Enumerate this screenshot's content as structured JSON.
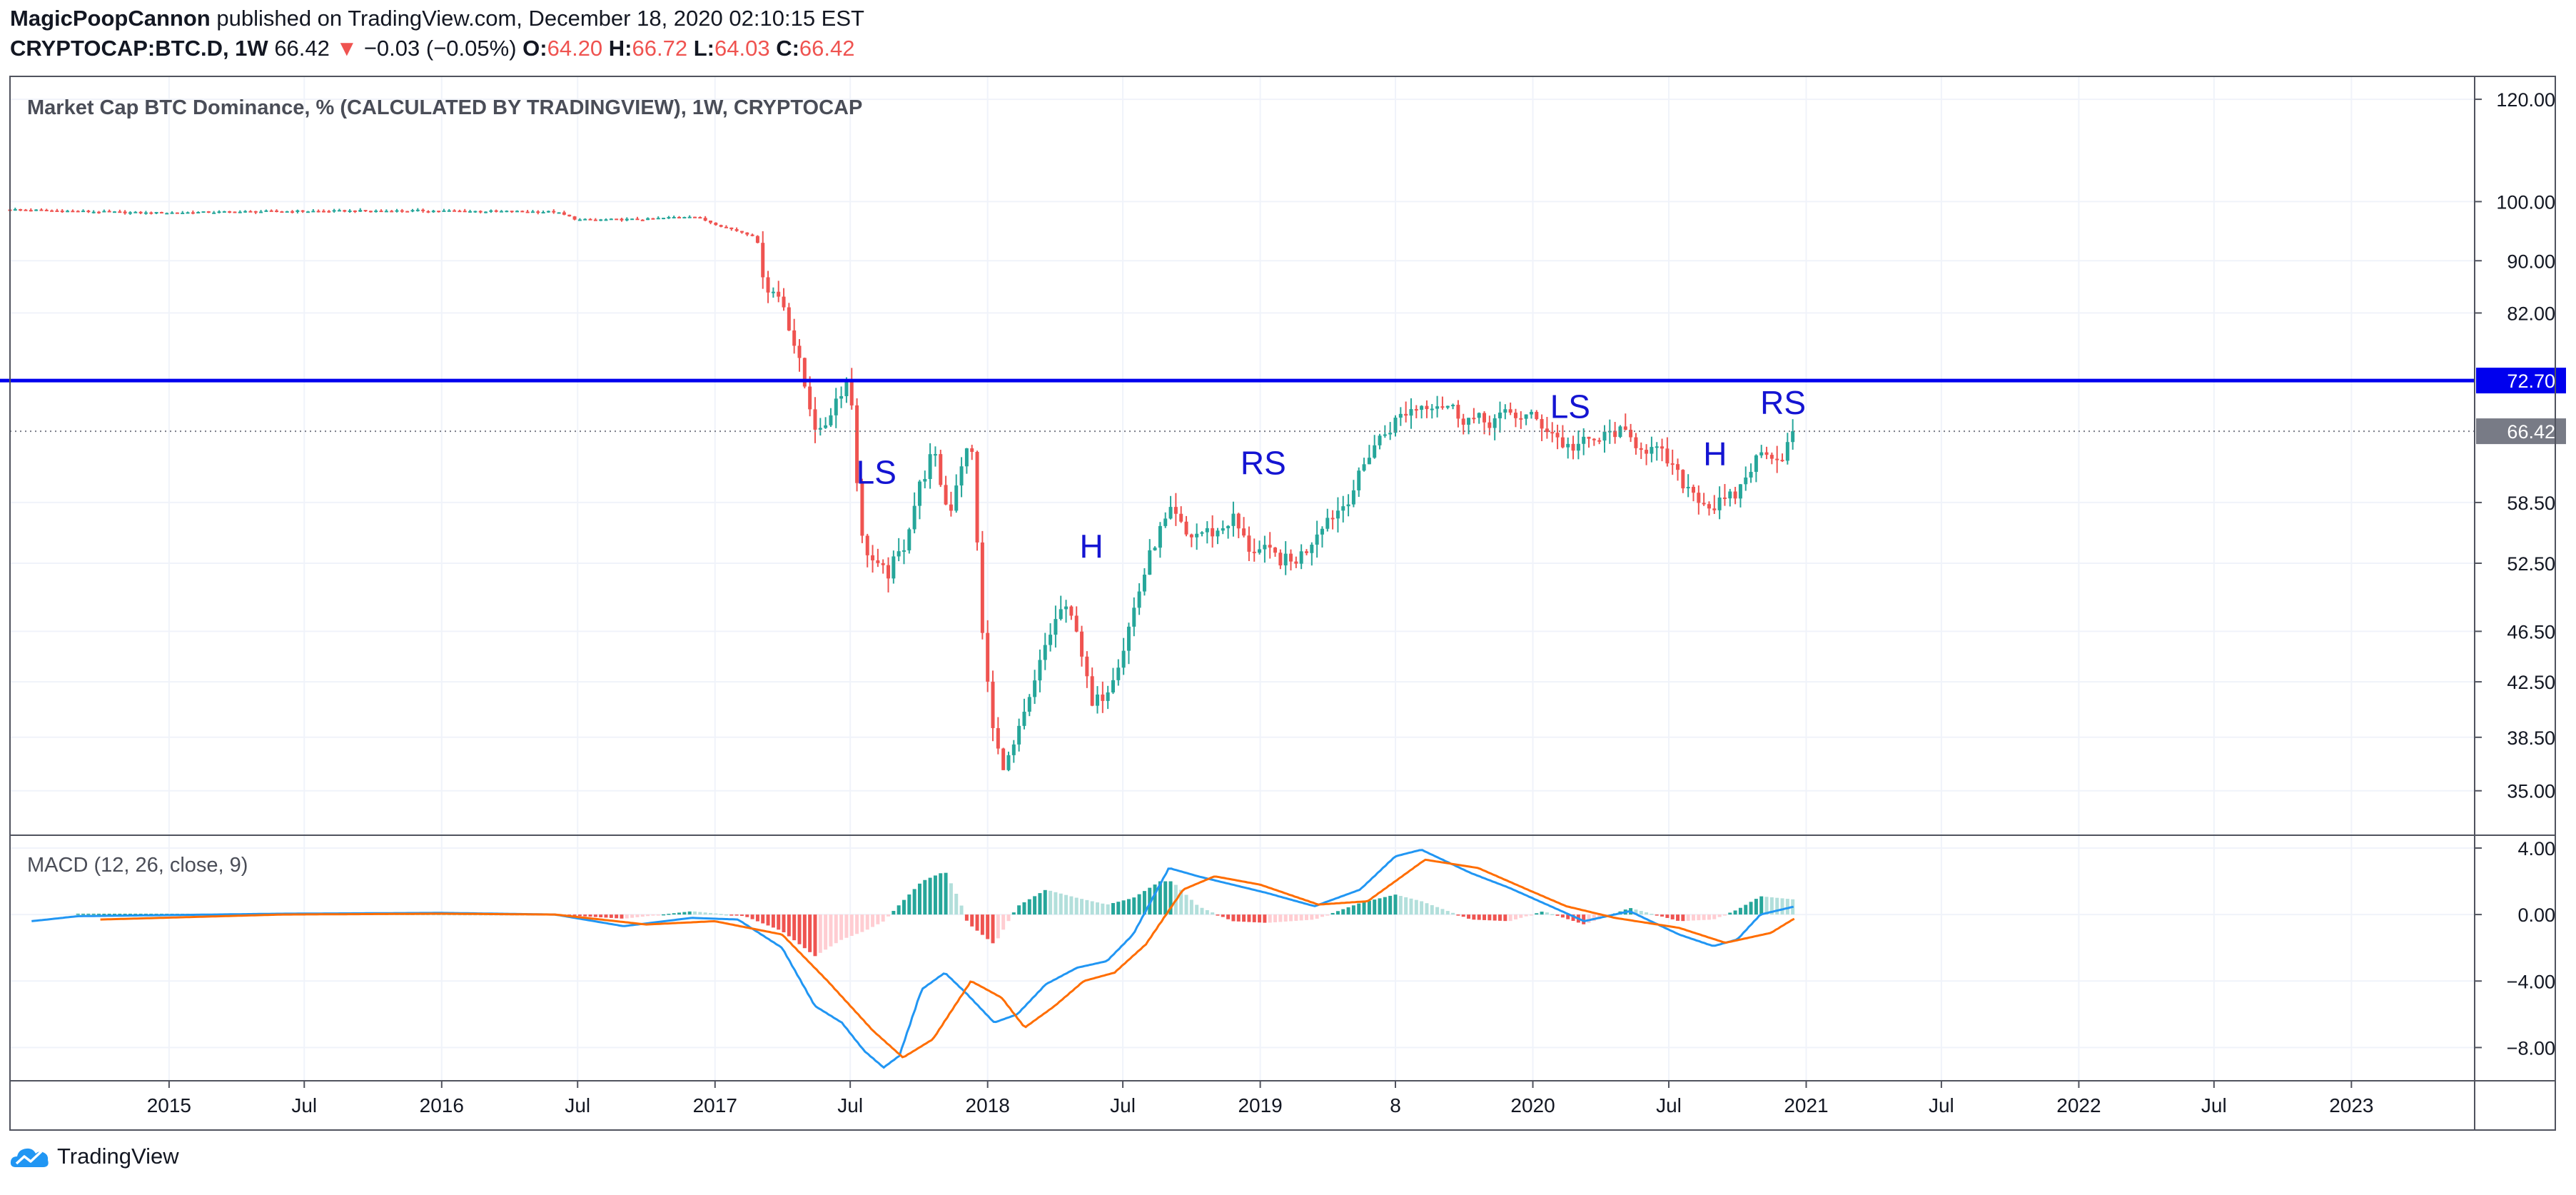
{
  "header": {
    "author": "MagicPoopCannon",
    "published": "published on TradingView.com, December 18, 2020 02:10:15 EST",
    "symbol": "CRYPTOCAP:BTC.D, 1W",
    "last": "66.42",
    "arrow": "▼",
    "change": "−0.03 (−0.05%)",
    "o_label": "O:",
    "o_value": "64.20",
    "h_label": "H:",
    "h_value": "66.72",
    "l_label": "L:",
    "l_value": "64.03",
    "c_label": "C:",
    "c_value": "66.42"
  },
  "branding": {
    "name": "TradingView",
    "icon": "tradingview-cloud-icon"
  },
  "colors": {
    "up": "#26a69a",
    "down": "#ef5350",
    "hist_up_strong": "#26a69a",
    "hist_up_weak": "#b2dfdb",
    "hist_down_strong": "#ef5350",
    "hist_down_weak": "#ffcdd2",
    "macd_line": "#2196f3",
    "signal_line": "#ff6d00",
    "resistance": "#0000ee",
    "annotation": "#1414d2",
    "last_badge": "#787b86"
  },
  "chart_data": [
    {
      "type": "candlestick",
      "title": "Market Cap BTC Dominance, % (CALCULATED BY TRADINGVIEW), 1W, CRYPTOCAP",
      "y_scale": "log",
      "ylim": [
        32.5,
        125
      ],
      "xlim": [
        "2014-06-02",
        "2023-06-15"
      ],
      "y_ticks": [
        "120.00",
        "100.00",
        "90.00",
        "82.00",
        "58.50",
        "52.50",
        "46.50",
        "42.50",
        "38.50",
        "35.00"
      ],
      "x_ticks": [
        {
          "date": "2015-01-01",
          "label": "2015"
        },
        {
          "date": "2015-07-01",
          "label": "Jul"
        },
        {
          "date": "2016-01-01",
          "label": "2016"
        },
        {
          "date": "2016-07-01",
          "label": "Jul"
        },
        {
          "date": "2017-01-01",
          "label": "2017"
        },
        {
          "date": "2017-07-01",
          "label": "Jul"
        },
        {
          "date": "2018-01-01",
          "label": "2018"
        },
        {
          "date": "2018-07-01",
          "label": "Jul"
        },
        {
          "date": "2019-01-01",
          "label": "2019"
        },
        {
          "date": "2019-07-01",
          "label": "8"
        },
        {
          "date": "2020-01-01",
          "label": "2020"
        },
        {
          "date": "2020-07-01",
          "label": "Jul"
        },
        {
          "date": "2021-01-01",
          "label": "2021"
        },
        {
          "date": "2021-07-01",
          "label": "Jul"
        },
        {
          "date": "2022-01-01",
          "label": "2022"
        },
        {
          "date": "2022-07-01",
          "label": "Jul"
        },
        {
          "date": "2023-01-01",
          "label": "2023"
        }
      ],
      "horizontal_line": {
        "value": 72.7,
        "label": "72.70"
      },
      "last_price": {
        "value": 66.42,
        "label": "66.42"
      },
      "annotations": [
        {
          "text": "LS",
          "date": "2017-08-05",
          "value": 60.5
        },
        {
          "text": "H",
          "date": "2018-05-20",
          "value": 53.0
        },
        {
          "text": "RS",
          "date": "2019-01-05",
          "value": 61.5
        },
        {
          "text": "LS",
          "date": "2020-02-20",
          "value": 68.0
        },
        {
          "text": "H",
          "date": "2020-09-01",
          "value": 62.5
        },
        {
          "text": "RS",
          "date": "2020-12-01",
          "value": 68.5
        }
      ],
      "close_path": [
        [
          "2014-06-02",
          98.6
        ],
        [
          "2014-12-01",
          98.0
        ],
        [
          "2015-06-01",
          98.3
        ],
        [
          "2015-12-01",
          98.4
        ],
        [
          "2016-06-01",
          98.2
        ],
        [
          "2016-07-01",
          96.8
        ],
        [
          "2016-10-01",
          96.9
        ],
        [
          "2016-12-01",
          97.5
        ],
        [
          "2017-01-15",
          95.5
        ],
        [
          "2017-02-25",
          94.0
        ],
        [
          "2017-03-10",
          86.0
        ],
        [
          "2017-04-01",
          84.0
        ],
        [
          "2017-05-01",
          72.0
        ],
        [
          "2017-05-20",
          65.5
        ],
        [
          "2017-06-10",
          70.0
        ],
        [
          "2017-06-30",
          73.5
        ],
        [
          "2017-07-15",
          55.0
        ],
        [
          "2017-08-05",
          52.0
        ],
        [
          "2017-08-20",
          51.5
        ],
        [
          "2017-09-10",
          54.0
        ],
        [
          "2017-10-01",
          60.0
        ],
        [
          "2017-10-20",
          64.0
        ],
        [
          "2017-11-10",
          57.0
        ],
        [
          "2017-11-25",
          62.5
        ],
        [
          "2017-12-10",
          65.0
        ],
        [
          "2017-12-25",
          46.0
        ],
        [
          "2018-01-10",
          38.0
        ],
        [
          "2018-01-25",
          36.5
        ],
        [
          "2018-02-10",
          38.5
        ],
        [
          "2018-03-01",
          41.5
        ],
        [
          "2018-03-20",
          45.5
        ],
        [
          "2018-04-10",
          48.5
        ],
        [
          "2018-04-30",
          47.0
        ],
        [
          "2018-05-20",
          40.5
        ],
        [
          "2018-06-10",
          42.0
        ],
        [
          "2018-07-01",
          45.0
        ],
        [
          "2018-07-25",
          50.5
        ],
        [
          "2018-08-15",
          55.0
        ],
        [
          "2018-09-05",
          57.5
        ],
        [
          "2018-09-25",
          55.0
        ],
        [
          "2018-10-15",
          55.5
        ],
        [
          "2018-11-05",
          55.5
        ],
        [
          "2018-11-25",
          57.0
        ],
        [
          "2018-12-15",
          54.0
        ],
        [
          "2019-01-10",
          53.5
        ],
        [
          "2019-02-10",
          52.5
        ],
        [
          "2019-03-01",
          53.5
        ],
        [
          "2019-03-25",
          56.5
        ],
        [
          "2019-04-20",
          58.0
        ],
        [
          "2019-05-10",
          60.5
        ],
        [
          "2019-05-30",
          64.5
        ],
        [
          "2019-06-20",
          66.5
        ],
        [
          "2019-07-10",
          68.5
        ],
        [
          "2019-08-01",
          69.5
        ],
        [
          "2019-08-20",
          70.0
        ],
        [
          "2019-09-10",
          69.5
        ],
        [
          "2019-10-01",
          68.0
        ],
        [
          "2019-11-01",
          67.5
        ],
        [
          "2019-12-01",
          68.5
        ],
        [
          "2020-01-01",
          68.0
        ],
        [
          "2020-01-25",
          66.5
        ],
        [
          "2020-02-15",
          64.5
        ],
        [
          "2020-03-10",
          65.0
        ],
        [
          "2020-04-01",
          65.5
        ],
        [
          "2020-04-20",
          66.5
        ],
        [
          "2020-05-10",
          65.5
        ],
        [
          "2020-06-01",
          64.5
        ],
        [
          "2020-06-25",
          63.5
        ],
        [
          "2020-07-15",
          61.0
        ],
        [
          "2020-08-05",
          59.5
        ],
        [
          "2020-08-25",
          58.0
        ],
        [
          "2020-09-15",
          58.5
        ],
        [
          "2020-10-01",
          59.5
        ],
        [
          "2020-10-20",
          62.5
        ],
        [
          "2020-11-10",
          64.5
        ],
        [
          "2020-11-25",
          63.0
        ],
        [
          "2020-12-18",
          66.42
        ]
      ]
    },
    {
      "type": "line",
      "title": "MACD (12, 26, close, 9)",
      "ylim": [
        -10.0,
        4.6
      ],
      "y_ticks": [
        "4.00",
        "0.00",
        "−4.00",
        "−8.00"
      ],
      "series": [
        {
          "name": "MACD",
          "points": [
            [
              "2014-07-01",
              -0.4
            ],
            [
              "2014-09-01",
              -0.1
            ],
            [
              "2015-06-01",
              0.05
            ],
            [
              "2016-01-01",
              0.1
            ],
            [
              "2016-06-01",
              0.0
            ],
            [
              "2016-09-01",
              -0.7
            ],
            [
              "2016-12-01",
              -0.2
            ],
            [
              "2017-02-01",
              -0.3
            ],
            [
              "2017-04-01",
              -2.0
            ],
            [
              "2017-05-15",
              -5.5
            ],
            [
              "2017-06-20",
              -6.5
            ],
            [
              "2017-07-20",
              -8.2
            ],
            [
              "2017-08-15",
              -9.2
            ],
            [
              "2017-09-05",
              -8.5
            ],
            [
              "2017-10-05",
              -4.5
            ],
            [
              "2017-11-05",
              -3.5
            ],
            [
              "2017-12-05",
              -4.8
            ],
            [
              "2018-01-10",
              -6.5
            ],
            [
              "2018-02-10",
              -6.0
            ],
            [
              "2018-03-20",
              -4.2
            ],
            [
              "2018-05-01",
              -3.2
            ],
            [
              "2018-06-10",
              -2.8
            ],
            [
              "2018-07-15",
              -1.2
            ],
            [
              "2018-09-01",
              2.8
            ],
            [
              "2018-10-10",
              2.3
            ],
            [
              "2018-11-25",
              1.8
            ],
            [
              "2019-01-10",
              1.3
            ],
            [
              "2019-03-15",
              0.5
            ],
            [
              "2019-05-15",
              1.5
            ],
            [
              "2019-07-01",
              3.5
            ],
            [
              "2019-08-05",
              3.9
            ],
            [
              "2019-10-10",
              2.5
            ],
            [
              "2019-12-01",
              1.6
            ],
            [
              "2020-01-15",
              0.7
            ],
            [
              "2020-03-10",
              -0.4
            ],
            [
              "2020-05-10",
              0.2
            ],
            [
              "2020-07-15",
              -1.2
            ],
            [
              "2020-08-30",
              -1.9
            ],
            [
              "2020-10-01",
              -1.5
            ],
            [
              "2020-11-01",
              0.0
            ],
            [
              "2020-12-18",
              0.5
            ]
          ]
        },
        {
          "name": "Signal",
          "points": [
            [
              "2014-10-01",
              -0.3
            ],
            [
              "2015-06-01",
              0.0
            ],
            [
              "2016-01-01",
              0.05
            ],
            [
              "2016-06-01",
              0.0
            ],
            [
              "2016-10-01",
              -0.6
            ],
            [
              "2017-01-01",
              -0.4
            ],
            [
              "2017-04-01",
              -1.2
            ],
            [
              "2017-06-01",
              -4.0
            ],
            [
              "2017-08-01",
              -7.0
            ],
            [
              "2017-09-10",
              -8.6
            ],
            [
              "2017-10-20",
              -7.5
            ],
            [
              "2017-12-10",
              -4.0
            ],
            [
              "2018-01-20",
              -5.0
            ],
            [
              "2018-02-20",
              -6.8
            ],
            [
              "2018-04-01",
              -5.5
            ],
            [
              "2018-05-10",
              -4.0
            ],
            [
              "2018-06-20",
              -3.5
            ],
            [
              "2018-08-01",
              -1.8
            ],
            [
              "2018-09-20",
              1.5
            ],
            [
              "2018-11-01",
              2.3
            ],
            [
              "2019-01-01",
              1.8
            ],
            [
              "2019-03-20",
              0.6
            ],
            [
              "2019-05-25",
              0.8
            ],
            [
              "2019-08-10",
              3.3
            ],
            [
              "2019-10-20",
              2.8
            ],
            [
              "2019-12-20",
              1.6
            ],
            [
              "2020-02-15",
              0.5
            ],
            [
              "2020-04-20",
              -0.2
            ],
            [
              "2020-07-15",
              -0.8
            ],
            [
              "2020-09-15",
              -1.7
            ],
            [
              "2020-11-15",
              -1.1
            ],
            [
              "2020-12-18",
              -0.2
            ]
          ]
        }
      ],
      "histogram": [
        [
          "2014-09-01",
          0.05
        ],
        [
          "2015-06-01",
          0.05
        ],
        [
          "2016-06-01",
          0.0
        ],
        [
          "2016-09-01",
          -0.25
        ],
        [
          "2016-12-01",
          0.2
        ],
        [
          "2017-02-10",
          -0.1
        ],
        [
          "2017-04-01",
          -1.0
        ],
        [
          "2017-05-15",
          -2.5
        ],
        [
          "2017-06-20",
          -1.5
        ],
        [
          "2017-07-20",
          -1.0
        ],
        [
          "2017-08-15",
          -0.4
        ],
        [
          "2017-09-05",
          0.6
        ],
        [
          "2017-10-05",
          2.0
        ],
        [
          "2017-11-05",
          2.6
        ],
        [
          "2017-11-25",
          0.8
        ],
        [
          "2017-12-05",
          -0.5
        ],
        [
          "2018-01-10",
          -1.8
        ],
        [
          "2018-02-10",
          0.5
        ],
        [
          "2018-03-20",
          1.5
        ],
        [
          "2018-05-01",
          1.0
        ],
        [
          "2018-06-10",
          0.6
        ],
        [
          "2018-07-15",
          1.0
        ],
        [
          "2018-08-20",
          2.0
        ],
        [
          "2018-09-05",
          2.0
        ],
        [
          "2018-10-10",
          0.5
        ],
        [
          "2018-11-25",
          -0.4
        ],
        [
          "2019-01-10",
          -0.5
        ],
        [
          "2019-03-15",
          -0.3
        ],
        [
          "2019-05-15",
          0.7
        ],
        [
          "2019-07-01",
          1.2
        ],
        [
          "2019-08-05",
          0.8
        ],
        [
          "2019-10-10",
          -0.3
        ],
        [
          "2019-12-01",
          -0.4
        ],
        [
          "2020-01-15",
          0.2
        ],
        [
          "2020-03-10",
          -0.6
        ],
        [
          "2020-05-10",
          0.4
        ],
        [
          "2020-07-15",
          -0.4
        ],
        [
          "2020-08-30",
          -0.3
        ],
        [
          "2020-10-01",
          0.3
        ],
        [
          "2020-11-01",
          1.1
        ],
        [
          "2020-12-18",
          0.9
        ]
      ]
    }
  ]
}
